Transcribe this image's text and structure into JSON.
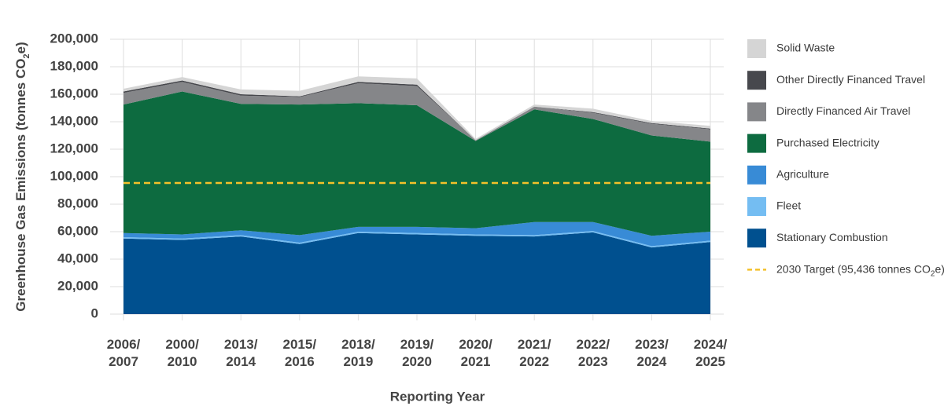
{
  "chart_data": {
    "type": "area",
    "stacked": true,
    "ylabel": [
      "Greenhouse Gas Emissions (tonnes CO",
      "2",
      "e)"
    ],
    "xlabel": "Reporting Year",
    "categories": [
      [
        "2006/",
        "2007"
      ],
      [
        "2000/",
        "2010"
      ],
      [
        "2013/",
        "2014"
      ],
      [
        "2015/",
        "2016"
      ],
      [
        "2018/",
        "2019"
      ],
      [
        "2019/",
        "2020"
      ],
      [
        "2020/",
        "2021"
      ],
      [
        "2021/",
        "2022"
      ],
      [
        "2022/",
        "2023"
      ],
      [
        "2023/",
        "2024"
      ],
      [
        "2024/",
        "2025"
      ]
    ],
    "series": [
      {
        "name": "Stationary Combustion",
        "color": "#00508f",
        "values": [
          55000,
          54000,
          56500,
          51000,
          59000,
          58000,
          57000,
          56500,
          59500,
          48500,
          52500
        ]
      },
      {
        "name": "Fleet",
        "color": "#74bdf2",
        "values": [
          1000,
          1000,
          1000,
          1000,
          1000,
          1000,
          1000,
          1000,
          1000,
          1000,
          1000
        ]
      },
      {
        "name": "Agriculture",
        "color": "#388bd6",
        "values": [
          3000,
          3000,
          3500,
          5500,
          3500,
          4500,
          4500,
          9500,
          6500,
          7500,
          6500
        ]
      },
      {
        "name": "Purchased Electricity",
        "color": "#0d6b40",
        "values": [
          93500,
          104000,
          92000,
          95000,
          90000,
          88500,
          63500,
          82000,
          75000,
          73000,
          65500
        ]
      },
      {
        "name": "Directly Financed Air Travel",
        "color": "#858689",
        "values": [
          8500,
          7000,
          6000,
          5500,
          14500,
          14000,
          500,
          2000,
          4500,
          8500,
          9000
        ]
      },
      {
        "name": "Other Directly Financed Travel",
        "color": "#47484d",
        "values": [
          1000,
          1000,
          1000,
          500,
          1000,
          1000,
          0,
          0,
          500,
          500,
          500
        ]
      },
      {
        "name": "Solid Waste",
        "color": "#d5d5d5",
        "values": [
          2000,
          2500,
          3500,
          4000,
          4000,
          4500,
          1000,
          1500,
          2500,
          1500,
          2000
        ]
      }
    ],
    "target": {
      "value": 95436,
      "label": [
        "2030 Target (95,436 tonnes CO",
        "2",
        "e)"
      ],
      "color": "#f3c12a"
    },
    "ylim": [
      0,
      200000
    ],
    "yticks": [
      0,
      {
        "value": 20000,
        "label": "20,000"
      },
      {
        "value": 40000,
        "label": "40,000"
      },
      {
        "value": 60000,
        "label": "60,000"
      },
      {
        "value": 80000,
        "label": "80,000"
      },
      {
        "value": 100000,
        "label": "100,000"
      },
      {
        "value": 120000,
        "label": "120,000"
      },
      {
        "value": 140000,
        "label": "140,000"
      },
      {
        "value": 160000,
        "label": "160,000"
      },
      {
        "value": 180000,
        "label": "180,000"
      },
      {
        "value": 200000,
        "label": "200,000"
      }
    ],
    "grid": true,
    "legend": "right"
  }
}
